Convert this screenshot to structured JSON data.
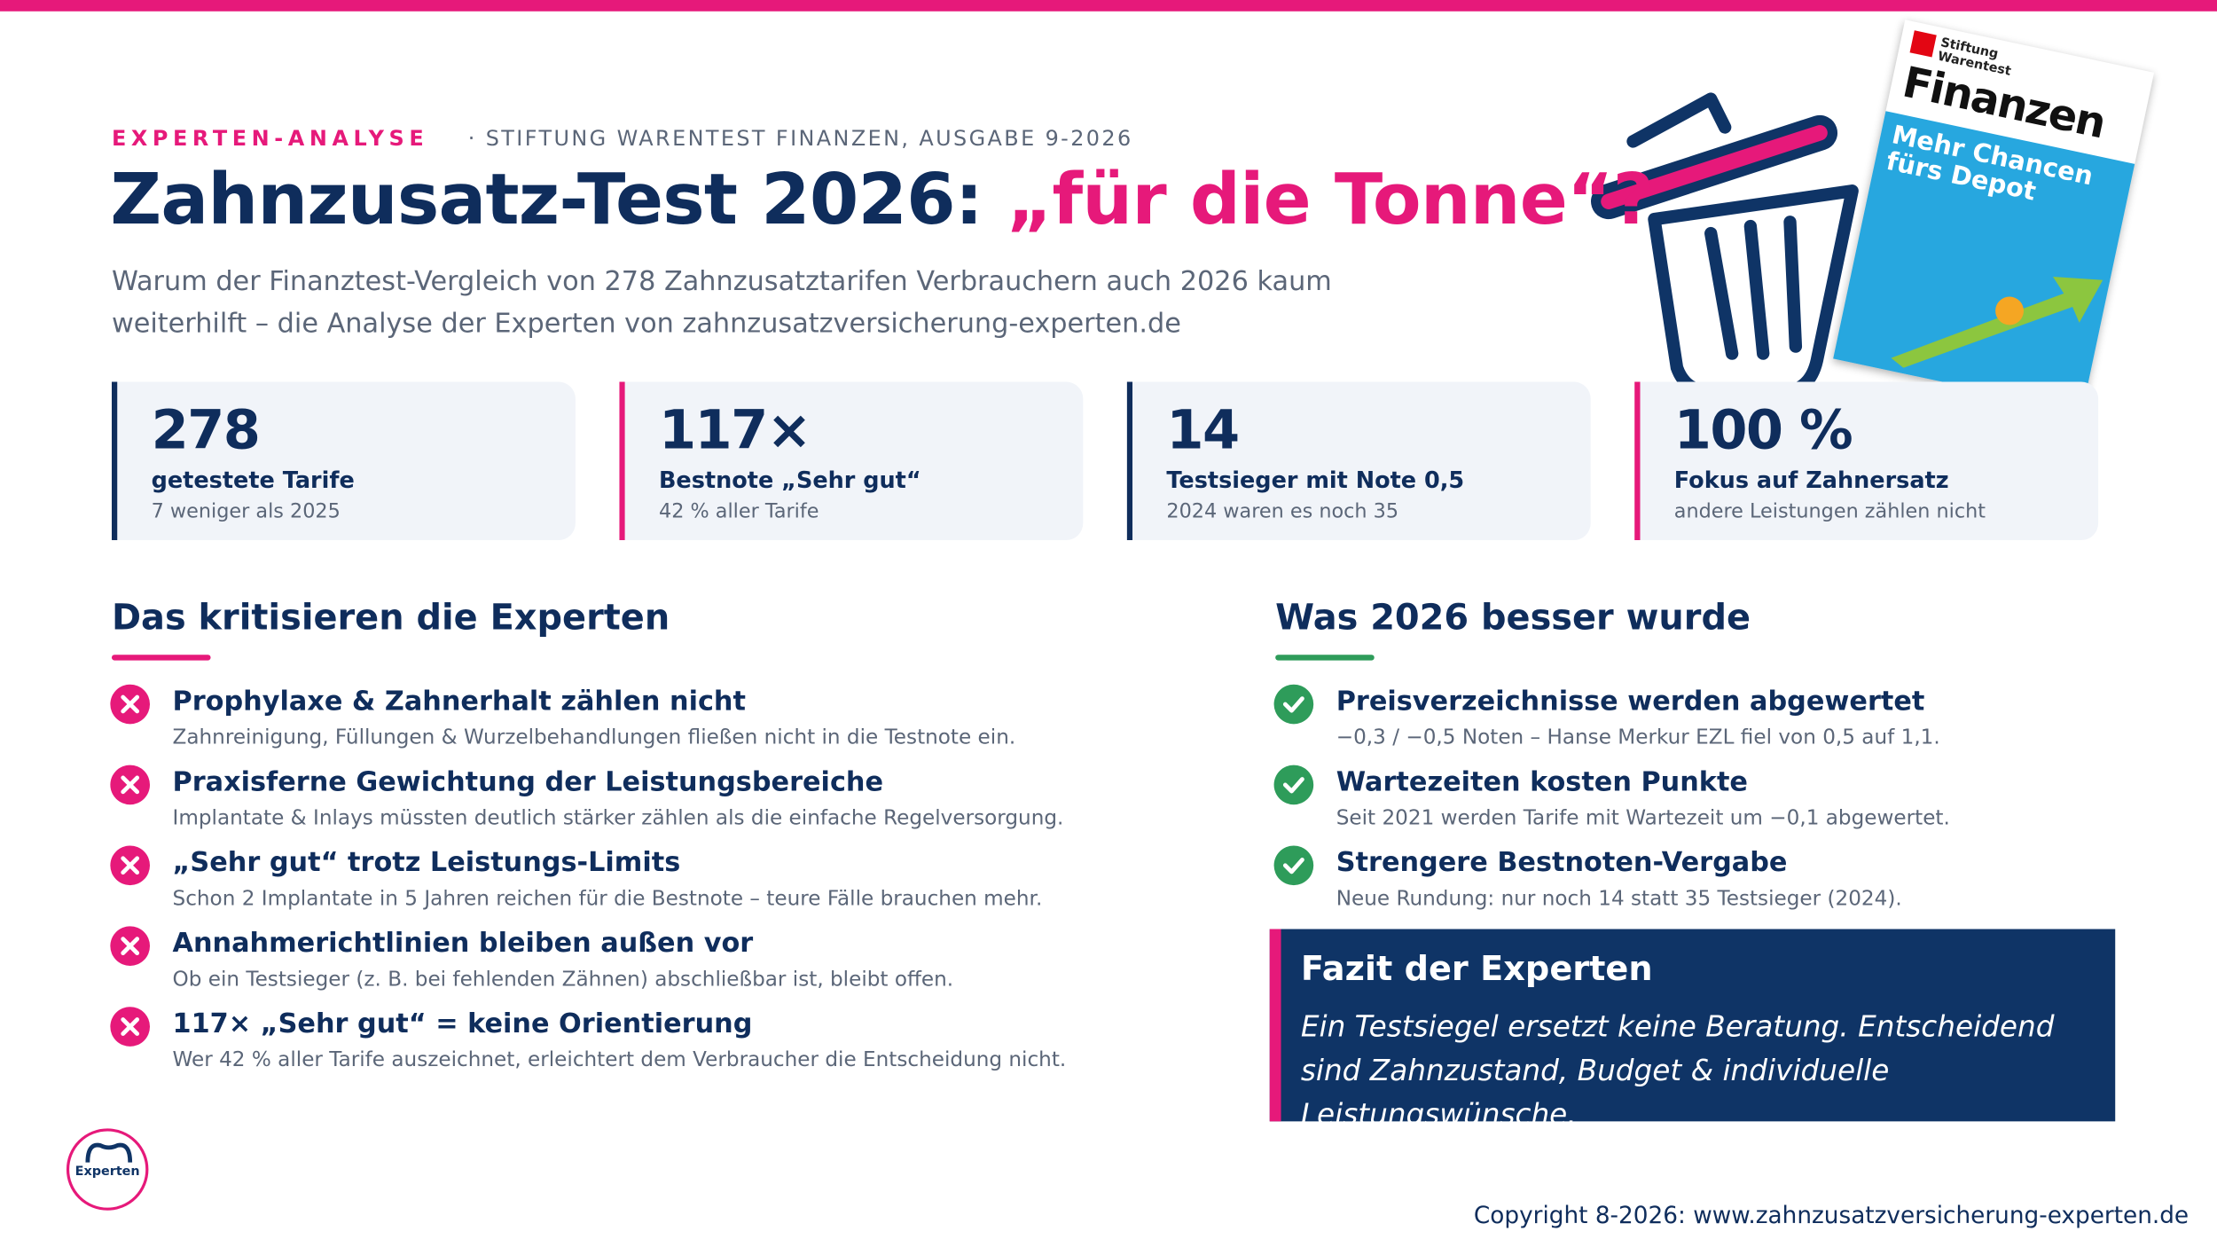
{
  "header": {
    "kicker": "EXPERTEN-ANALYSE",
    "source": "· STIFTUNG WARENTEST FINANZEN, AUSGABE 9-2026",
    "title_main": "Zahnzusatz-Test 2026:",
    "title_highlight": "„für die Tonne“?",
    "subtitle": "Warum der Finanztest-Vergleich von 278 Zahnzusatztarifen Verbrauchern auch 2026 kaum weiterhilft – die Analyse der Experten von zahnzusatzversicherung-experten.de"
  },
  "magazine": {
    "brand": "Stiftung Warentest",
    "title": "Finanzen",
    "headline": "Mehr Chancen fürs Depot"
  },
  "stats": [
    {
      "value": "278",
      "label": "getestete Tarife",
      "note": "7 weniger als 2025"
    },
    {
      "value": "117×",
      "label": "Bestnote „Sehr gut“",
      "note": "42 % aller Tarife"
    },
    {
      "value": "14",
      "label": "Testsieger mit Note 0,5",
      "note": "2024 waren es noch 35"
    },
    {
      "value": "100 %",
      "label": "Fokus auf Zahnersatz",
      "note": "andere Leistungen zählen nicht"
    }
  ],
  "critique": {
    "heading": "Das kritisieren die Experten",
    "items": [
      {
        "title": "Prophylaxe & Zahnerhalt zählen nicht",
        "text": "Zahnreinigung, Füllungen & Wurzelbehandlungen fließen nicht in die Testnote ein."
      },
      {
        "title": "Praxisferne Gewichtung der Leistungsbereiche",
        "text": "Implantate & Inlays müssten deutlich stärker zählen als die einfache Regelversorgung."
      },
      {
        "title": "„Sehr gut“ trotz Leistungs-Limits",
        "text": "Schon 2 Implantate in 5 Jahren reichen für die Bestnote – teure Fälle brauchen mehr."
      },
      {
        "title": "Annahmerichtlinien bleiben außen vor",
        "text": "Ob ein Testsieger (z. B. bei fehlenden Zähnen) abschließbar ist, bleibt offen."
      },
      {
        "title": "117× „Sehr gut“ = keine Orientierung",
        "text": "Wer 42 % aller Tarife auszeichnet, erleichtert dem Verbraucher die Entscheidung nicht."
      }
    ]
  },
  "improvements": {
    "heading": "Was 2026 besser wurde",
    "items": [
      {
        "title": "Preisverzeichnisse werden abgewertet",
        "text": "−0,3 / −0,5 Noten – Hanse Merkur EZL fiel von 0,5 auf 1,1."
      },
      {
        "title": "Wartezeiten kosten Punkte",
        "text": "Seit 2021 werden Tarife mit Wartezeit um −0,1 abgewertet."
      },
      {
        "title": "Strengere Bestnoten-Vergabe",
        "text": "Neue Rundung: nur noch 14 statt 35 Testsieger (2024)."
      }
    ]
  },
  "conclusion": {
    "heading": "Fazit der Experten",
    "text": "Ein Testsiegel ersetzt keine Beratung. Entscheidend sind Zahnzustand, Budget & individuelle Leistungswünsche."
  },
  "logo": {
    "text": "Experten"
  },
  "footer": {
    "copyright": "Copyright 8-2026: www.zahnzusatzversicherung-experten.de"
  }
}
